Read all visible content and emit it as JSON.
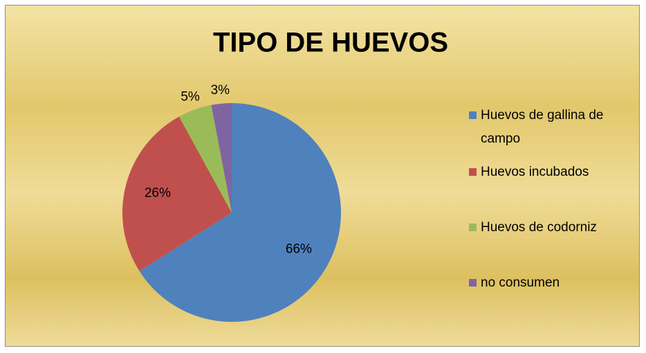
{
  "chart_data": {
    "type": "pie",
    "title": "TIPO DE HUEVOS",
    "categories": [
      "Huevos de gallina de campo",
      "Huevos incubados",
      "Huevos de codorniz",
      "no consumen"
    ],
    "values": [
      66,
      26,
      5,
      3
    ],
    "value_labels": [
      "66%",
      "26%",
      "5%",
      "3%"
    ],
    "colors": [
      "#4f81bd",
      "#c0504d",
      "#9bbb59",
      "#8064a2"
    ],
    "legend": "right"
  }
}
